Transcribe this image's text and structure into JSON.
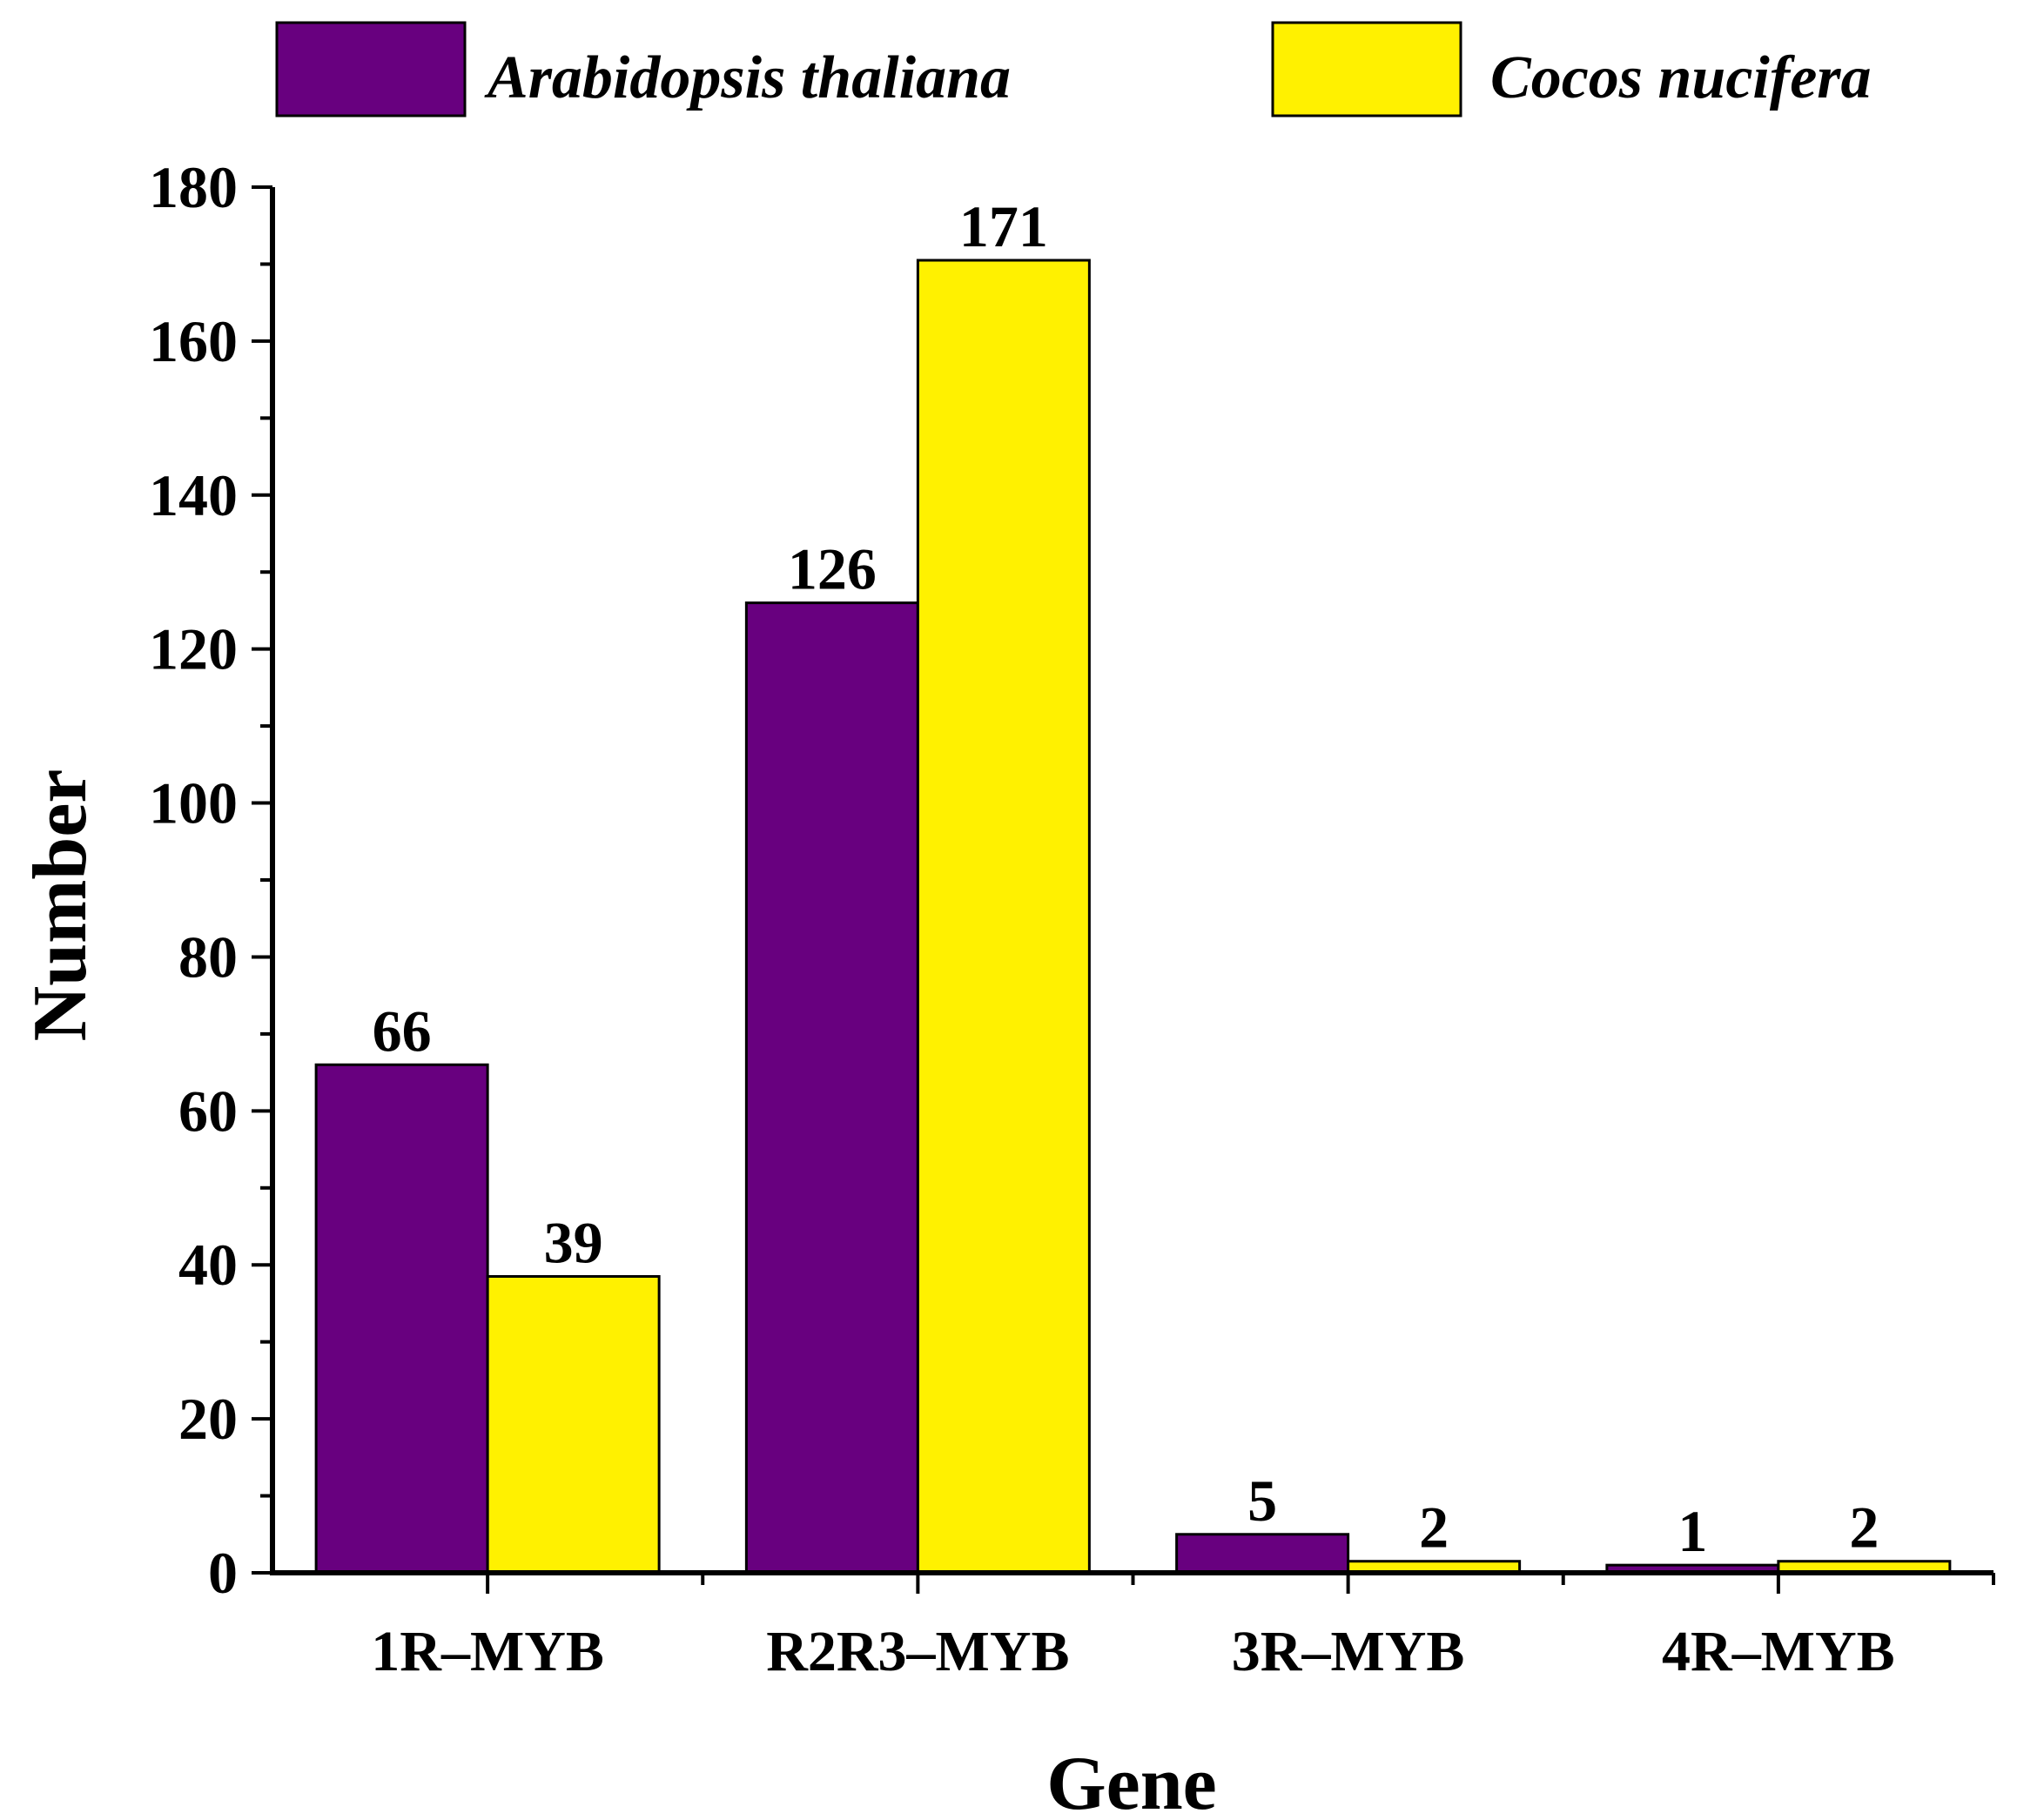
{
  "chart_data": {
    "type": "bar",
    "title": "",
    "xlabel": "Gene",
    "ylabel": "Number",
    "categories": [
      "1R–MYB",
      "R2R3–MYB",
      "3R–MYB",
      "4R–MYB"
    ],
    "series": [
      {
        "name": "Arabidopsis thaliana",
        "values": [
          66,
          126,
          5,
          1
        ],
        "labels": [
          "66",
          "126",
          "5",
          "1"
        ],
        "color": "#68007F"
      },
      {
        "name": "Cocos nucifera",
        "values": [
          38.5,
          170.5,
          1.5,
          1.5
        ],
        "labels": [
          "39",
          "171",
          "2",
          "2"
        ],
        "color": "#FFF100"
      }
    ],
    "ylim": [
      0,
      180
    ],
    "yticks": [
      0,
      20,
      40,
      60,
      80,
      100,
      120,
      140,
      160,
      180
    ],
    "ytick_labels": [
      "0",
      "20",
      "40",
      "60",
      "80",
      "100",
      "120",
      "140",
      "160",
      "180"
    ],
    "grid": false,
    "legend_position": "top"
  }
}
